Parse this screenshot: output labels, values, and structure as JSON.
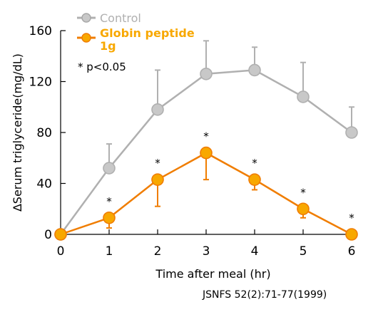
{
  "chart_data": {
    "type": "line",
    "x": [
      0,
      1,
      2,
      3,
      4,
      5,
      6
    ],
    "xlabel": "Time after meal (hr)",
    "ylabel": "∆Serum triglyceride(mg/dL)",
    "xlim": [
      0,
      6
    ],
    "ylim": [
      0,
      160
    ],
    "xticks": [
      "0",
      "1",
      "2",
      "3",
      "4",
      "5",
      "6"
    ],
    "yticks": [
      "0",
      "40",
      "80",
      "120",
      "160"
    ],
    "series": [
      {
        "name": "Control",
        "color": "#b0b0b0",
        "marker_fill": "#c8c8c8",
        "values": [
          0,
          52,
          98,
          126,
          129,
          108,
          80
        ],
        "error_plus": [
          0,
          19,
          31,
          26,
          18,
          27,
          20
        ]
      },
      {
        "name": "Globin peptide 1g",
        "color": "#f07d00",
        "marker_fill": "#f8a800",
        "values": [
          0,
          13,
          43,
          64,
          43,
          20,
          0
        ],
        "error_plus": [
          0,
          0,
          0,
          0,
          0,
          0,
          3
        ],
        "error_minus": [
          0,
          8,
          21,
          21,
          8,
          7,
          0
        ]
      }
    ],
    "significance_marks": [
      "*",
      "*",
      "*",
      "*",
      "*",
      "*"
    ],
    "significance_x": [
      1,
      2,
      3,
      4,
      5,
      6
    ],
    "legend_position": "top-left",
    "grid": false
  },
  "legend": {
    "control_label": "Control",
    "globin_label_line1": "Globin peptide",
    "globin_label_line2": "1g"
  },
  "annotation": "* p<0.05",
  "source": "JSNFS 52(2):71-77(1999)"
}
